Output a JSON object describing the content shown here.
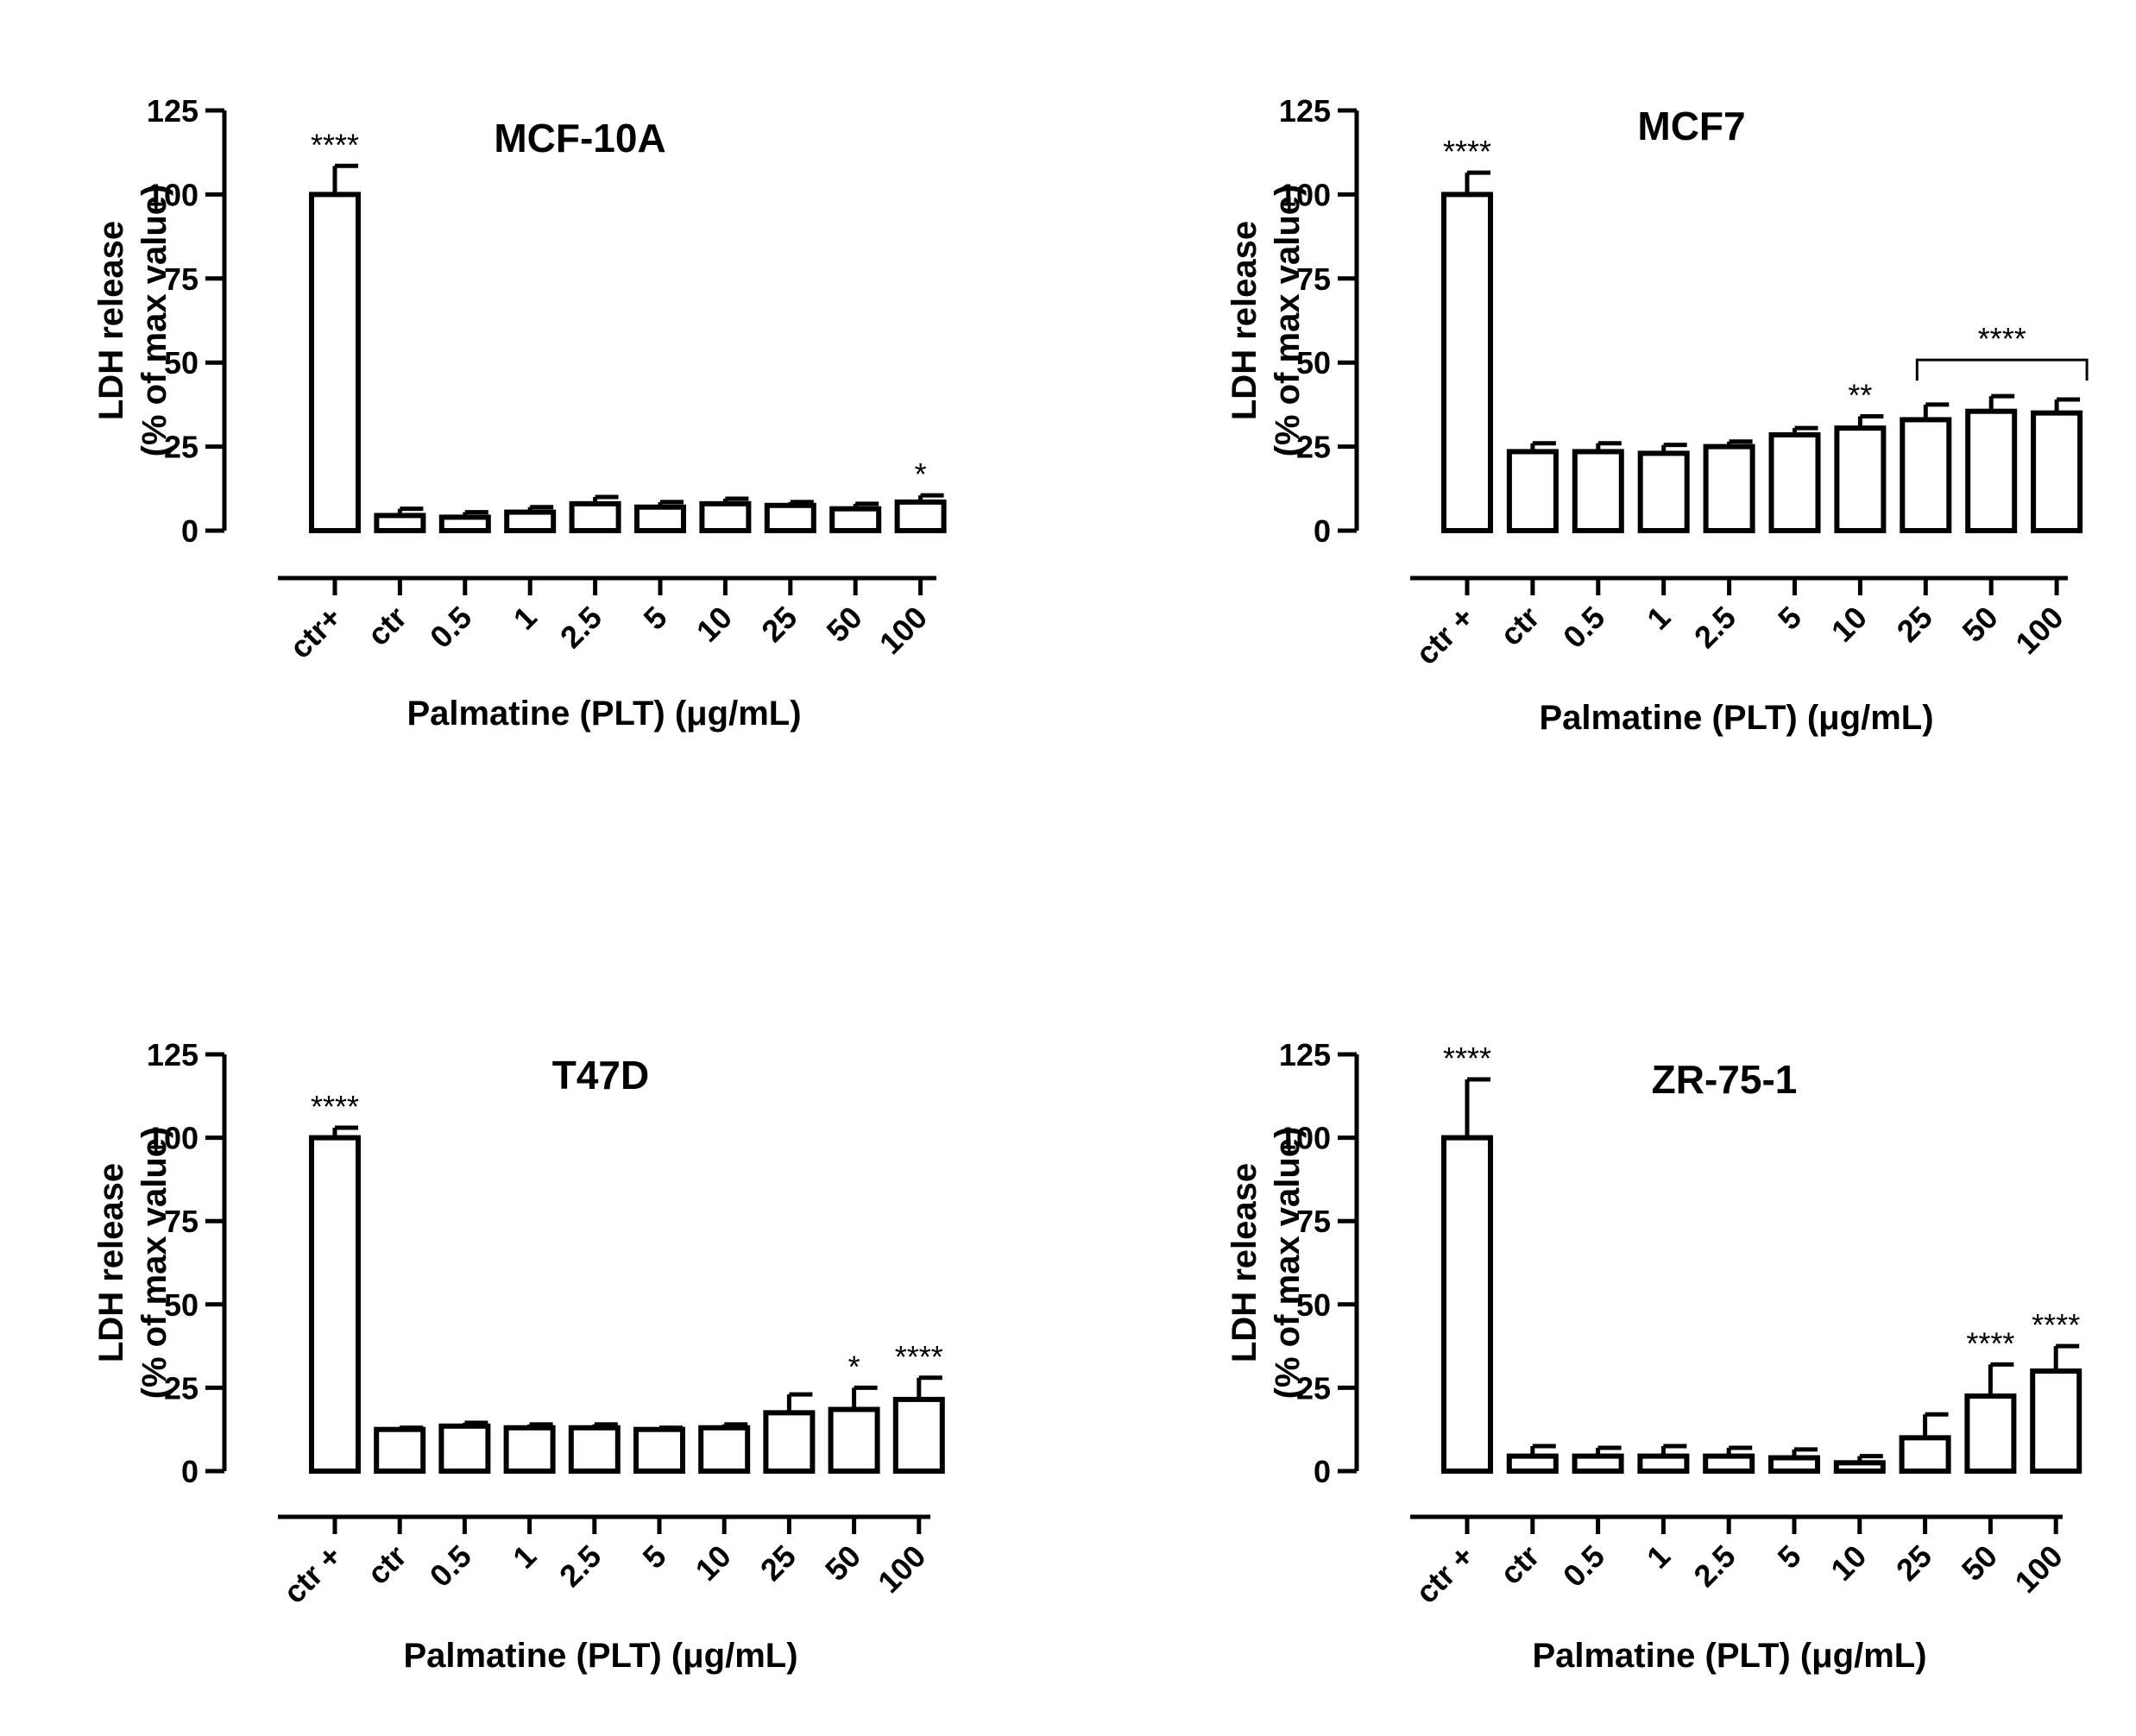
{
  "chart_data": [
    {
      "type": "bar",
      "title": "MCF-10A",
      "ylabel_line1": "LDH release",
      "ylabel_line2": "(% of max value)",
      "xlabel": "Palmatine (PLT) (μg/mL)",
      "ylim": [
        0,
        125
      ],
      "yticks": [
        0,
        25,
        50,
        75,
        100,
        125
      ],
      "categories": [
        "ctr+",
        "ctr",
        "0.5",
        "1",
        "2.5",
        "5",
        "10",
        "25",
        "50",
        "100"
      ],
      "values": [
        100,
        4.5,
        4,
        5.5,
        8,
        7,
        8,
        7.5,
        6.5,
        8.5
      ],
      "errors": [
        8.5,
        2,
        1.5,
        1.5,
        2,
        1.5,
        1.5,
        1,
        1.5,
        2
      ],
      "significance": [
        "****",
        "",
        "",
        "",
        "",
        "",
        "",
        "",
        "",
        "*"
      ],
      "brackets": []
    },
    {
      "type": "bar",
      "title": "MCF7",
      "ylabel_line1": "LDH release",
      "ylabel_line2": "(% of max value)",
      "xlabel": "Palmatine (PLT) (μg/mL)",
      "ylim": [
        0,
        125
      ],
      "yticks": [
        0,
        25,
        50,
        75,
        100,
        125
      ],
      "categories": [
        "ctr +",
        "ctr",
        "0.5",
        "1",
        "2.5",
        "5",
        "10",
        "25",
        "50",
        "100"
      ],
      "values": [
        100,
        23.5,
        23.5,
        23,
        25,
        28.5,
        30.5,
        33,
        35.5,
        35
      ],
      "errors": [
        6.5,
        2.5,
        2.5,
        2.5,
        1.5,
        2,
        3.5,
        4.5,
        4.5,
        4
      ],
      "significance": [
        "****",
        "",
        "",
        "",
        "",
        "",
        "**",
        "",
        "",
        ""
      ],
      "brackets": [
        {
          "from": 7,
          "to": 9,
          "label": "****"
        }
      ]
    },
    {
      "type": "bar",
      "title": "T47D",
      "ylabel_line1": "LDH release",
      "ylabel_line2": "(% of max value)",
      "xlabel": "Palmatine (PLT) (μg/mL)",
      "ylim": [
        0,
        125
      ],
      "yticks": [
        0,
        25,
        50,
        75,
        100,
        125
      ],
      "categories": [
        "ctr +",
        "ctr",
        "0.5",
        "1",
        "2.5",
        "5",
        "10",
        "25",
        "50",
        "100"
      ],
      "values": [
        100,
        12.5,
        13.5,
        13,
        13,
        12.5,
        13,
        17.5,
        18.5,
        21.5
      ],
      "errors": [
        3,
        0.5,
        1,
        1,
        1,
        0.5,
        1,
        5.5,
        6.5,
        6.5
      ],
      "significance": [
        "****",
        "",
        "",
        "",
        "",
        "",
        "",
        "",
        "*",
        "****"
      ],
      "brackets": []
    },
    {
      "type": "bar",
      "title": "ZR-75-1",
      "ylabel_line1": "LDH release",
      "ylabel_line2": "(% of max value)",
      "xlabel": "Palmatine (PLT) (μg/mL)",
      "ylim": [
        0,
        125
      ],
      "yticks": [
        0,
        25,
        50,
        75,
        100,
        125
      ],
      "categories": [
        "ctr +",
        "ctr",
        "0.5",
        "1",
        "2.5",
        "5",
        "10",
        "25",
        "50",
        "100"
      ],
      "values": [
        100,
        4.5,
        4.5,
        4.5,
        4.5,
        4,
        2.5,
        10,
        22.5,
        30
      ],
      "errors": [
        17.5,
        3,
        2.5,
        3,
        2.5,
        2.5,
        2,
        7,
        9.5,
        7.5
      ],
      "significance": [
        "****",
        "",
        "",
        "",
        "",
        "",
        "",
        "",
        "****",
        "****"
      ],
      "brackets": []
    }
  ]
}
